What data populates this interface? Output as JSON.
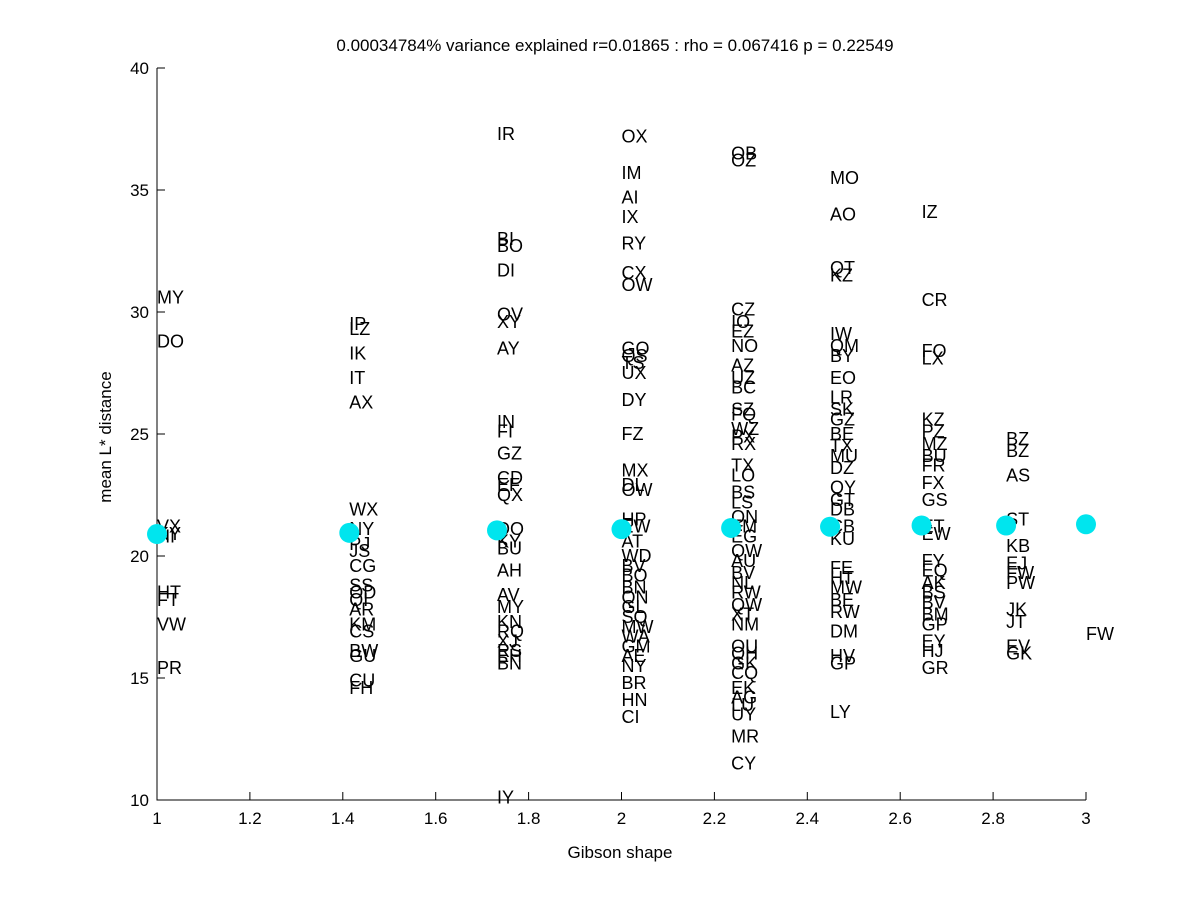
{
  "chart_data": {
    "type": "scatter",
    "title": "0.00034784% variance explained r=0.01865 : rho = 0.067416 p = 0.22549",
    "xlabel": "Gibson shape",
    "ylabel": "mean L* distance",
    "xlim": [
      1,
      3
    ],
    "ylim": [
      10,
      40
    ],
    "xticks": [
      "1",
      "1.2",
      "1.4",
      "1.6",
      "1.8",
      "2",
      "2.2",
      "2.4",
      "2.6",
      "2.8",
      "3"
    ],
    "yticks": [
      "10",
      "15",
      "20",
      "25",
      "30",
      "35",
      "40"
    ],
    "grid": false,
    "marker_color": "#00e5ee",
    "means": [
      {
        "x": 1.0,
        "y": 20.9
      },
      {
        "x": 1.414,
        "y": 20.95
      },
      {
        "x": 1.732,
        "y": 21.05
      },
      {
        "x": 2.0,
        "y": 21.1
      },
      {
        "x": 2.236,
        "y": 21.15
      },
      {
        "x": 2.449,
        "y": 21.2
      },
      {
        "x": 2.646,
        "y": 21.25
      },
      {
        "x": 2.828,
        "y": 21.25
      },
      {
        "x": 3.0,
        "y": 21.3
      }
    ],
    "labels": [
      {
        "x": 1.0,
        "y": 30.6,
        "text": "MY"
      },
      {
        "x": 1.0,
        "y": 28.8,
        "text": "DO"
      },
      {
        "x": 1.0,
        "y": 21.2,
        "text": "VX"
      },
      {
        "x": 1.0,
        "y": 20.9,
        "text": "KY"
      },
      {
        "x": 1.0,
        "y": 20.8,
        "text": "HI"
      },
      {
        "x": 1.0,
        "y": 18.5,
        "text": "HT"
      },
      {
        "x": 1.0,
        "y": 18.2,
        "text": "FT"
      },
      {
        "x": 1.0,
        "y": 17.2,
        "text": "VW"
      },
      {
        "x": 1.0,
        "y": 15.4,
        "text": "PR"
      },
      {
        "x": 1.414,
        "y": 29.5,
        "text": "IP"
      },
      {
        "x": 1.414,
        "y": 29.3,
        "text": "LZ"
      },
      {
        "x": 1.414,
        "y": 28.3,
        "text": "IK"
      },
      {
        "x": 1.414,
        "y": 27.3,
        "text": "IT"
      },
      {
        "x": 1.414,
        "y": 26.3,
        "text": "AX"
      },
      {
        "x": 1.414,
        "y": 21.9,
        "text": "WX"
      },
      {
        "x": 1.414,
        "y": 21.1,
        "text": "NY"
      },
      {
        "x": 1.414,
        "y": 20.5,
        "text": "PJ"
      },
      {
        "x": 1.414,
        "y": 20.2,
        "text": "JS"
      },
      {
        "x": 1.414,
        "y": 19.6,
        "text": "CG"
      },
      {
        "x": 1.414,
        "y": 18.8,
        "text": "SS"
      },
      {
        "x": 1.414,
        "y": 18.5,
        "text": "OD"
      },
      {
        "x": 1.414,
        "y": 18.2,
        "text": "QI"
      },
      {
        "x": 1.414,
        "y": 17.8,
        "text": "AR"
      },
      {
        "x": 1.414,
        "y": 17.2,
        "text": "KM"
      },
      {
        "x": 1.414,
        "y": 16.9,
        "text": "CS"
      },
      {
        "x": 1.414,
        "y": 16.1,
        "text": "BW"
      },
      {
        "x": 1.414,
        "y": 15.9,
        "text": "GU"
      },
      {
        "x": 1.414,
        "y": 14.9,
        "text": "CU"
      },
      {
        "x": 1.414,
        "y": 14.6,
        "text": "FH"
      },
      {
        "x": 1.732,
        "y": 37.3,
        "text": "IR"
      },
      {
        "x": 1.732,
        "y": 33.0,
        "text": "BI"
      },
      {
        "x": 1.732,
        "y": 32.7,
        "text": "BO"
      },
      {
        "x": 1.732,
        "y": 31.7,
        "text": "DI"
      },
      {
        "x": 1.732,
        "y": 29.9,
        "text": "OV"
      },
      {
        "x": 1.732,
        "y": 29.6,
        "text": "XY"
      },
      {
        "x": 1.732,
        "y": 28.5,
        "text": "AY"
      },
      {
        "x": 1.732,
        "y": 25.5,
        "text": "IN"
      },
      {
        "x": 1.732,
        "y": 25.1,
        "text": "FI"
      },
      {
        "x": 1.732,
        "y": 24.2,
        "text": "GZ"
      },
      {
        "x": 1.732,
        "y": 23.2,
        "text": "CD"
      },
      {
        "x": 1.732,
        "y": 22.9,
        "text": "EF"
      },
      {
        "x": 1.732,
        "y": 22.5,
        "text": "QX"
      },
      {
        "x": 1.732,
        "y": 21.1,
        "text": "DO"
      },
      {
        "x": 1.732,
        "y": 20.6,
        "text": "KY"
      },
      {
        "x": 1.732,
        "y": 20.3,
        "text": "BU"
      },
      {
        "x": 1.732,
        "y": 19.4,
        "text": "AH"
      },
      {
        "x": 1.732,
        "y": 18.4,
        "text": "AV"
      },
      {
        "x": 1.732,
        "y": 17.9,
        "text": "MY"
      },
      {
        "x": 1.732,
        "y": 17.3,
        "text": "KN"
      },
      {
        "x": 1.732,
        "y": 16.9,
        "text": "RQ"
      },
      {
        "x": 1.732,
        "y": 16.5,
        "text": "XJ"
      },
      {
        "x": 1.732,
        "y": 16.1,
        "text": "RS"
      },
      {
        "x": 1.732,
        "y": 15.9,
        "text": "EH"
      },
      {
        "x": 1.732,
        "y": 15.6,
        "text": "BN"
      },
      {
        "x": 1.732,
        "y": 10.1,
        "text": "IY"
      },
      {
        "x": 2.0,
        "y": 37.2,
        "text": "OX"
      },
      {
        "x": 2.0,
        "y": 35.7,
        "text": "IM"
      },
      {
        "x": 2.0,
        "y": 34.7,
        "text": "AI"
      },
      {
        "x": 2.0,
        "y": 33.9,
        "text": "IX"
      },
      {
        "x": 2.0,
        "y": 32.8,
        "text": "RY"
      },
      {
        "x": 2.0,
        "y": 31.6,
        "text": "CX"
      },
      {
        "x": 2.0,
        "y": 31.1,
        "text": "OW"
      },
      {
        "x": 2.0,
        "y": 28.5,
        "text": "GO"
      },
      {
        "x": 2.0,
        "y": 28.2,
        "text": "QS"
      },
      {
        "x": 2.0,
        "y": 27.9,
        "text": "TS"
      },
      {
        "x": 2.0,
        "y": 27.5,
        "text": "UX"
      },
      {
        "x": 2.0,
        "y": 26.4,
        "text": "DY"
      },
      {
        "x": 2.0,
        "y": 25.0,
        "text": "FZ"
      },
      {
        "x": 2.0,
        "y": 23.5,
        "text": "MX"
      },
      {
        "x": 2.0,
        "y": 22.9,
        "text": "DL"
      },
      {
        "x": 2.0,
        "y": 22.7,
        "text": "OW"
      },
      {
        "x": 2.0,
        "y": 21.5,
        "text": "HP"
      },
      {
        "x": 2.0,
        "y": 21.2,
        "text": "EW"
      },
      {
        "x": 2.0,
        "y": 20.6,
        "text": "AT"
      },
      {
        "x": 2.0,
        "y": 20.0,
        "text": "WD"
      },
      {
        "x": 2.0,
        "y": 19.6,
        "text": "BV"
      },
      {
        "x": 2.0,
        "y": 19.2,
        "text": "BO"
      },
      {
        "x": 2.0,
        "y": 18.7,
        "text": "BN"
      },
      {
        "x": 2.0,
        "y": 18.3,
        "text": "QN"
      },
      {
        "x": 2.0,
        "y": 17.9,
        "text": "GL"
      },
      {
        "x": 2.0,
        "y": 17.5,
        "text": "SQ"
      },
      {
        "x": 2.0,
        "y": 17.1,
        "text": "MW"
      },
      {
        "x": 2.0,
        "y": 16.7,
        "text": "WA"
      },
      {
        "x": 2.0,
        "y": 16.3,
        "text": "GM"
      },
      {
        "x": 2.0,
        "y": 15.9,
        "text": "AE"
      },
      {
        "x": 2.0,
        "y": 15.5,
        "text": "NY"
      },
      {
        "x": 2.0,
        "y": 14.8,
        "text": "BR"
      },
      {
        "x": 2.0,
        "y": 14.1,
        "text": "HN"
      },
      {
        "x": 2.0,
        "y": 13.4,
        "text": "CI"
      },
      {
        "x": 2.236,
        "y": 36.5,
        "text": "OB"
      },
      {
        "x": 2.236,
        "y": 36.2,
        "text": "OZ"
      },
      {
        "x": 2.236,
        "y": 30.1,
        "text": "CZ"
      },
      {
        "x": 2.236,
        "y": 29.6,
        "text": "IO"
      },
      {
        "x": 2.236,
        "y": 29.2,
        "text": "EZ"
      },
      {
        "x": 2.236,
        "y": 28.6,
        "text": "NO"
      },
      {
        "x": 2.236,
        "y": 27.8,
        "text": "AZ"
      },
      {
        "x": 2.236,
        "y": 27.3,
        "text": "UZ"
      },
      {
        "x": 2.236,
        "y": 26.9,
        "text": "BC"
      },
      {
        "x": 2.236,
        "y": 26.0,
        "text": "SZ"
      },
      {
        "x": 2.236,
        "y": 25.8,
        "text": "FQ"
      },
      {
        "x": 2.236,
        "y": 25.2,
        "text": "WZ"
      },
      {
        "x": 2.236,
        "y": 24.9,
        "text": "PX"
      },
      {
        "x": 2.236,
        "y": 24.6,
        "text": "RX"
      },
      {
        "x": 2.236,
        "y": 23.7,
        "text": "TX"
      },
      {
        "x": 2.236,
        "y": 23.3,
        "text": "LO"
      },
      {
        "x": 2.236,
        "y": 22.6,
        "text": "BS"
      },
      {
        "x": 2.236,
        "y": 22.2,
        "text": "LS"
      },
      {
        "x": 2.236,
        "y": 21.6,
        "text": "QN"
      },
      {
        "x": 2.236,
        "y": 21.2,
        "text": "FM"
      },
      {
        "x": 2.236,
        "y": 20.8,
        "text": "EG"
      },
      {
        "x": 2.236,
        "y": 20.2,
        "text": "QW"
      },
      {
        "x": 2.236,
        "y": 19.8,
        "text": "AU"
      },
      {
        "x": 2.236,
        "y": 19.3,
        "text": "BV"
      },
      {
        "x": 2.236,
        "y": 18.9,
        "text": "NL"
      },
      {
        "x": 2.236,
        "y": 18.5,
        "text": "RW"
      },
      {
        "x": 2.236,
        "y": 18.0,
        "text": "QW"
      },
      {
        "x": 2.236,
        "y": 17.6,
        "text": "XT"
      },
      {
        "x": 2.236,
        "y": 17.2,
        "text": "NM"
      },
      {
        "x": 2.236,
        "y": 16.3,
        "text": "OU"
      },
      {
        "x": 2.236,
        "y": 16.0,
        "text": "QH"
      },
      {
        "x": 2.236,
        "y": 15.6,
        "text": "GK"
      },
      {
        "x": 2.236,
        "y": 15.2,
        "text": "CQ"
      },
      {
        "x": 2.236,
        "y": 14.6,
        "text": "EK"
      },
      {
        "x": 2.236,
        "y": 14.2,
        "text": "AG"
      },
      {
        "x": 2.236,
        "y": 13.9,
        "text": "LU"
      },
      {
        "x": 2.236,
        "y": 13.5,
        "text": "UY"
      },
      {
        "x": 2.236,
        "y": 12.6,
        "text": "MR"
      },
      {
        "x": 2.236,
        "y": 11.5,
        "text": "CY"
      },
      {
        "x": 2.449,
        "y": 35.5,
        "text": "MO"
      },
      {
        "x": 2.449,
        "y": 34.0,
        "text": "AO"
      },
      {
        "x": 2.449,
        "y": 31.8,
        "text": "QT"
      },
      {
        "x": 2.449,
        "y": 31.5,
        "text": "KZ"
      },
      {
        "x": 2.449,
        "y": 29.1,
        "text": "IW"
      },
      {
        "x": 2.449,
        "y": 28.6,
        "text": "QM"
      },
      {
        "x": 2.449,
        "y": 28.2,
        "text": "BY"
      },
      {
        "x": 2.449,
        "y": 27.3,
        "text": "EO"
      },
      {
        "x": 2.449,
        "y": 26.5,
        "text": "LR"
      },
      {
        "x": 2.449,
        "y": 26.0,
        "text": "SK"
      },
      {
        "x": 2.449,
        "y": 25.6,
        "text": "GZ"
      },
      {
        "x": 2.449,
        "y": 25.0,
        "text": "BE"
      },
      {
        "x": 2.449,
        "y": 24.5,
        "text": "TX"
      },
      {
        "x": 2.449,
        "y": 24.1,
        "text": "MU"
      },
      {
        "x": 2.449,
        "y": 23.6,
        "text": "DZ"
      },
      {
        "x": 2.449,
        "y": 22.8,
        "text": "QY"
      },
      {
        "x": 2.449,
        "y": 22.3,
        "text": "GT"
      },
      {
        "x": 2.449,
        "y": 21.9,
        "text": "DB"
      },
      {
        "x": 2.449,
        "y": 21.2,
        "text": "CB"
      },
      {
        "x": 2.449,
        "y": 20.7,
        "text": "KU"
      },
      {
        "x": 2.449,
        "y": 19.5,
        "text": "FE"
      },
      {
        "x": 2.449,
        "y": 19.1,
        "text": "HT"
      },
      {
        "x": 2.449,
        "y": 18.7,
        "text": "MW"
      },
      {
        "x": 2.449,
        "y": 18.2,
        "text": "BE"
      },
      {
        "x": 2.449,
        "y": 17.7,
        "text": "RW"
      },
      {
        "x": 2.449,
        "y": 16.9,
        "text": "DM"
      },
      {
        "x": 2.449,
        "y": 15.9,
        "text": "HV"
      },
      {
        "x": 2.449,
        "y": 15.6,
        "text": "GP"
      },
      {
        "x": 2.449,
        "y": 13.6,
        "text": "LY"
      },
      {
        "x": 2.646,
        "y": 34.1,
        "text": "IZ"
      },
      {
        "x": 2.646,
        "y": 30.5,
        "text": "CR"
      },
      {
        "x": 2.646,
        "y": 28.4,
        "text": "FO"
      },
      {
        "x": 2.646,
        "y": 28.1,
        "text": "LX"
      },
      {
        "x": 2.646,
        "y": 25.6,
        "text": "KZ"
      },
      {
        "x": 2.646,
        "y": 25.1,
        "text": "PZ"
      },
      {
        "x": 2.646,
        "y": 24.6,
        "text": "MZ"
      },
      {
        "x": 2.646,
        "y": 24.1,
        "text": "BU"
      },
      {
        "x": 2.646,
        "y": 23.7,
        "text": "FR"
      },
      {
        "x": 2.646,
        "y": 23.0,
        "text": "FX"
      },
      {
        "x": 2.646,
        "y": 22.3,
        "text": "GS"
      },
      {
        "x": 2.646,
        "y": 21.2,
        "text": "ET"
      },
      {
        "x": 2.646,
        "y": 20.9,
        "text": "EW"
      },
      {
        "x": 2.646,
        "y": 19.8,
        "text": "FY"
      },
      {
        "x": 2.646,
        "y": 19.4,
        "text": "EQ"
      },
      {
        "x": 2.646,
        "y": 18.9,
        "text": "AK"
      },
      {
        "x": 2.646,
        "y": 18.5,
        "text": "BS"
      },
      {
        "x": 2.646,
        "y": 18.1,
        "text": "BV"
      },
      {
        "x": 2.646,
        "y": 17.6,
        "text": "BM"
      },
      {
        "x": 2.646,
        "y": 17.2,
        "text": "GP"
      },
      {
        "x": 2.646,
        "y": 16.5,
        "text": "EY"
      },
      {
        "x": 2.646,
        "y": 16.1,
        "text": "HJ"
      },
      {
        "x": 2.646,
        "y": 15.4,
        "text": "GR"
      },
      {
        "x": 2.828,
        "y": 24.8,
        "text": "BZ"
      },
      {
        "x": 2.828,
        "y": 24.3,
        "text": "BZ"
      },
      {
        "x": 2.828,
        "y": 23.3,
        "text": "AS"
      },
      {
        "x": 2.828,
        "y": 21.5,
        "text": "ST"
      },
      {
        "x": 2.828,
        "y": 20.4,
        "text": "KB"
      },
      {
        "x": 2.828,
        "y": 19.7,
        "text": "EJ"
      },
      {
        "x": 2.828,
        "y": 19.3,
        "text": "FW"
      },
      {
        "x": 2.828,
        "y": 18.9,
        "text": "PW"
      },
      {
        "x": 2.828,
        "y": 17.8,
        "text": "JK"
      },
      {
        "x": 2.828,
        "y": 17.3,
        "text": "JT"
      },
      {
        "x": 2.828,
        "y": 16.3,
        "text": "EV"
      },
      {
        "x": 2.828,
        "y": 16.0,
        "text": "GK"
      },
      {
        "x": 3.0,
        "y": 16.8,
        "text": "FW"
      }
    ]
  }
}
